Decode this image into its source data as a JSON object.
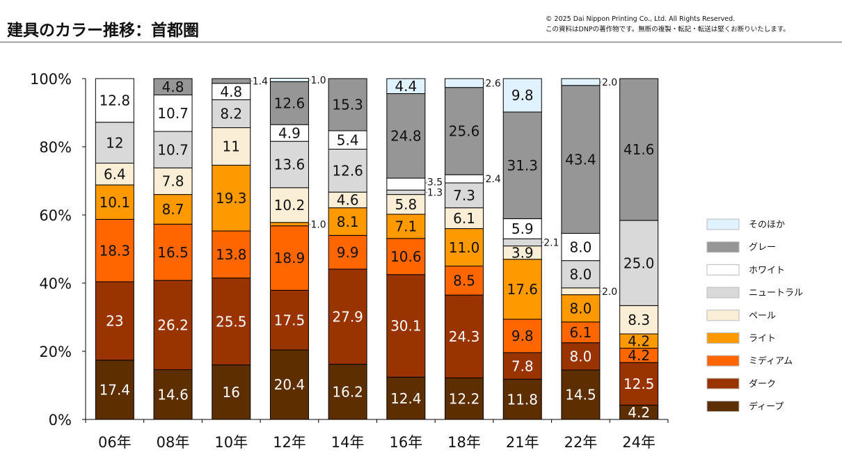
{
  "header": {
    "title": "建具のカラー推移：首都圏",
    "copyright": "© 2025 Dai Nippon Printing Co., Ltd. All Rights Reserved.",
    "notice": "この資料はDNPの著作物です。無断の複製・転記・転送は堅くお断りいたします。"
  },
  "chart_data": {
    "type": "bar",
    "stacked": true,
    "percent": true,
    "title": "建具のカラー推移：首都圏",
    "xlabel": "",
    "ylabel": "",
    "ylim": [
      0,
      100
    ],
    "yticks": [
      "0%",
      "20%",
      "40%",
      "60%",
      "80%",
      "100%"
    ],
    "categories": [
      "06年",
      "08年",
      "10年",
      "12年",
      "14年",
      "16年",
      "18年",
      "21年",
      "22年",
      "24年"
    ],
    "legend_position": "right",
    "series": [
      {
        "name": "ディープ",
        "color": "#5c2e00",
        "text_color": "#ffffff",
        "values": [
          17.4,
          14.6,
          16,
          20.4,
          16.2,
          12.4,
          12.2,
          11.8,
          14.5,
          4.2
        ],
        "labels": [
          "17.4",
          "14.6",
          "16",
          "20.4",
          "16.2",
          "12.4",
          "12.2",
          "11.8",
          "14.5",
          "4.2"
        ]
      },
      {
        "name": "ダーク",
        "color": "#993300",
        "text_color": "#ffffff",
        "values": [
          23,
          26.2,
          25.5,
          17.5,
          27.9,
          30.1,
          24.3,
          7.8,
          8.0,
          12.5
        ],
        "labels": [
          "23",
          "26.2",
          "25.5",
          "17.5",
          "27.9",
          "30.1",
          "24.3",
          "7.8",
          "8.0",
          "12.5"
        ]
      },
      {
        "name": "ミディアム",
        "color": "#ff6600",
        "text_color": "#111111",
        "values": [
          18.3,
          16.5,
          13.8,
          18.9,
          9.9,
          10.6,
          8.5,
          9.8,
          6.1,
          4.2
        ],
        "labels": [
          "18.3",
          "16.5",
          "13.8",
          "18.9",
          "9.9",
          "10.6",
          "8.5",
          "9.8",
          "6.1",
          "4.2"
        ]
      },
      {
        "name": "ライト",
        "color": "#ff9900",
        "text_color": "#111111",
        "values": [
          10.1,
          8.7,
          19.3,
          1.0,
          8.1,
          7.1,
          11.0,
          17.6,
          8.0,
          4.2
        ],
        "labels": [
          "10.1",
          "8.7",
          "19.3",
          "1.0",
          "8.1",
          "7.1",
          "11.0",
          "17.6",
          "8.0",
          "4.2"
        ]
      },
      {
        "name": "ペール",
        "color": "#fbeed6",
        "text_color": "#111111",
        "values": [
          6.4,
          7.8,
          11,
          10.2,
          4.6,
          5.8,
          6.1,
          3.9,
          2.0,
          8.3
        ],
        "labels": [
          "6.4",
          "7.8",
          "11",
          "10.2",
          "4.6",
          "5.8",
          "6.1",
          "3.9",
          "2.0",
          "8.3"
        ]
      },
      {
        "name": "ニュートラル",
        "color": "#d9d9d9",
        "text_color": "#111111",
        "values": [
          12,
          10.7,
          8.2,
          13.6,
          12.6,
          1.3,
          7.3,
          2.1,
          8.0,
          25.0
        ],
        "labels": [
          "12",
          "10.7",
          "8.2",
          "13.6",
          "12.6",
          "1.3",
          "7.3",
          "2.1",
          "8.0",
          "25.0"
        ]
      },
      {
        "name": "ホワイト",
        "color": "#ffffff",
        "text_color": "#111111",
        "values": [
          12.8,
          10.7,
          4.8,
          4.9,
          5.4,
          3.5,
          2.4,
          5.9,
          8.0,
          0
        ],
        "labels": [
          "12.8",
          "10.7",
          "4.8",
          "4.9",
          "5.4",
          "3.5",
          "2.4",
          "5.9",
          "8.0",
          ""
        ]
      },
      {
        "name": "グレー",
        "color": "#969696",
        "text_color": "#111111",
        "values": [
          0,
          4.8,
          1.4,
          12.6,
          15.3,
          24.8,
          25.6,
          31.3,
          43.4,
          41.6
        ],
        "labels": [
          "",
          "4.8",
          "1.4",
          "12.6",
          "15.3",
          "24.8",
          "25.6",
          "31.3",
          "43.4",
          "41.6"
        ]
      },
      {
        "name": "そのほか",
        "color": "#e0f2fd",
        "text_color": "#111111",
        "values": [
          0,
          0,
          0,
          1.0,
          0,
          4.4,
          2.6,
          9.8,
          2.0,
          0
        ],
        "labels": [
          "",
          "",
          "",
          "1.0",
          "",
          "4.4",
          "2.6",
          "9.8",
          "2.0",
          ""
        ]
      }
    ]
  }
}
